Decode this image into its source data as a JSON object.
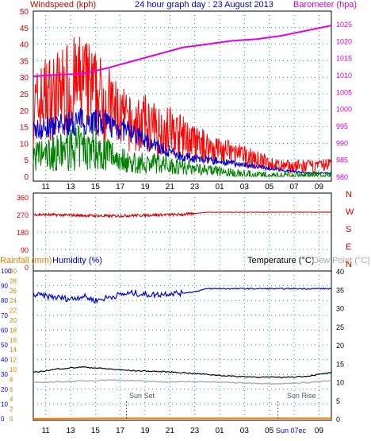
{
  "header": {
    "left": "Windspeed (kph)",
    "center": "24 hour graph day : 23 August 2013",
    "right": "Barometer (hpa)"
  },
  "lower_header": {
    "rainfall": "Rainfall (mm)",
    "humidity": "Humidity (%)",
    "temperature": "Temperature (°C)",
    "dewpoint": "Dew Point (°C)"
  },
  "annotations": {
    "sunset": "Sun Set",
    "sunrise": "Sun Rise",
    "xlabel_overlap": "Sun 07ec"
  },
  "colors": {
    "windspeed": "#ff0000",
    "gust_band": "#0000cc",
    "avg_band": "#008000",
    "barometer": "#e000e0",
    "direction": "#cc0000",
    "humidity": "#0000cc",
    "temperature": "#000000",
    "dewpoint": "#b0b0b0",
    "rainfall": "#ff8000",
    "axis_left": "#cc0000",
    "axis_right": "#cc00cc",
    "axis_lower_left": "#0000cc",
    "axis_lower_right": "#000000"
  },
  "chart_data": [
    {
      "type": "line",
      "title": "24 hour graph day : 23 August 2013",
      "x_ticks": [
        "11",
        "13",
        "15",
        "17",
        "19",
        "21",
        "23",
        "01",
        "03",
        "05",
        "07",
        "09"
      ],
      "left_axis": {
        "label": "Windspeed (kph)",
        "ylim": [
          0,
          50
        ],
        "ticks": [
          0,
          5,
          10,
          15,
          20,
          25,
          30,
          35,
          40,
          45,
          50
        ]
      },
      "right_axis": {
        "label": "Barometer (hpa)",
        "ylim": [
          980,
          1025
        ],
        "ticks": [
          980,
          985,
          990,
          995,
          1000,
          1005,
          1010,
          1015,
          1020,
          1025
        ]
      },
      "series": [
        {
          "name": "Windspeed (kph)",
          "x": [
            0,
            1,
            2,
            3,
            4,
            5,
            6,
            7,
            8,
            9,
            10,
            11,
            12,
            13,
            14,
            15,
            16,
            17,
            18,
            19,
            20,
            21,
            22,
            23,
            24
          ],
          "values": [
            20,
            24,
            25,
            27,
            28,
            25,
            22,
            18,
            15,
            16,
            14,
            14,
            12,
            10,
            9,
            8,
            7,
            6,
            5,
            4,
            3,
            3,
            3,
            3,
            4
          ]
        },
        {
          "name": "Barometer (hpa)",
          "x": [
            0,
            2,
            4,
            6,
            8,
            10,
            12,
            14,
            16,
            18,
            20,
            22,
            24
          ],
          "values": [
            1009.5,
            1010,
            1010.3,
            1012,
            1014,
            1016,
            1018,
            1019,
            1020,
            1020.5,
            1021.5,
            1023,
            1024.5
          ]
        }
      ],
      "bands": [
        {
          "x": [
            0,
            2,
            4,
            6,
            8,
            10,
            12,
            14,
            16,
            18,
            20,
            22,
            24
          ],
          "values": [
            14,
            15,
            17,
            16,
            13,
            9,
            6,
            5,
            4,
            3,
            2,
            1,
            1
          ]
        },
        {
          "x": [
            0,
            2,
            4,
            6,
            8,
            10,
            12,
            14,
            16,
            18,
            20,
            22,
            24
          ],
          "values": [
            6,
            7,
            9,
            7,
            4,
            4,
            3,
            2,
            1,
            0,
            0,
            0,
            0
          ]
        }
      ]
    },
    {
      "type": "scatter",
      "x_ticks": [
        "11",
        "13",
        "15",
        "17",
        "19",
        "21",
        "23",
        "01",
        "03",
        "05",
        "07",
        "09"
      ],
      "left_axis": {
        "ylim": [
          0,
          360
        ],
        "ticks": [
          0,
          90,
          180,
          270,
          360
        ]
      },
      "right_axis": {
        "labels": [
          "N",
          "W",
          "S",
          "E",
          "N"
        ]
      },
      "series": [
        {
          "name": "Wind direction",
          "x": [
            0,
            2,
            4,
            6,
            8,
            10,
            12,
            14,
            16,
            18,
            20,
            22,
            24
          ],
          "values": [
            270,
            268,
            265,
            262,
            265,
            268,
            270,
            282,
            282,
            282,
            282,
            282,
            282
          ]
        }
      ]
    },
    {
      "type": "line",
      "x_ticks": [
        "11",
        "13",
        "15",
        "17",
        "19",
        "21",
        "23",
        "01",
        "03",
        "05",
        "07",
        "09"
      ],
      "left_axis_outer": {
        "label": "Rainfall (mm)",
        "ylim": [
          0,
          30
        ],
        "ticks": [
          0,
          2,
          4,
          6,
          8,
          10,
          12,
          14,
          16,
          18,
          20,
          22,
          24,
          26,
          28,
          30
        ]
      },
      "left_axis": {
        "label": "Humidity (%)",
        "ylim": [
          0,
          100
        ],
        "ticks": [
          0,
          10,
          20,
          30,
          40,
          50,
          60,
          70,
          80,
          90,
          100
        ]
      },
      "right_axis": {
        "label": "Temperature (°C)",
        "ylim": [
          0,
          40
        ],
        "ticks": [
          0,
          5,
          10,
          15,
          20,
          25,
          30,
          35,
          40
        ]
      },
      "series": [
        {
          "name": "Humidity (%)",
          "x": [
            0,
            1,
            2,
            3,
            4,
            5,
            6,
            7,
            8,
            9,
            10,
            11,
            12,
            13,
            14,
            15,
            16,
            17,
            18,
            19,
            20,
            21,
            22,
            23,
            24
          ],
          "values": [
            84,
            83,
            82,
            81,
            83,
            80,
            82,
            84,
            85,
            84,
            84,
            85,
            85,
            86,
            88,
            88,
            88,
            88,
            88,
            88,
            88,
            88,
            88,
            88,
            88
          ]
        },
        {
          "name": "Temperature (°C)",
          "x": [
            0,
            2,
            4,
            6,
            8,
            10,
            12,
            14,
            16,
            18,
            20,
            22,
            24
          ],
          "values": [
            12.5,
            13.5,
            14,
            13.5,
            13,
            12.8,
            12.5,
            12,
            11.5,
            11.3,
            11.2,
            11.5,
            12.5
          ]
        },
        {
          "name": "Dew Point (°C)",
          "x": [
            0,
            2,
            4,
            6,
            8,
            10,
            12,
            14,
            16,
            18,
            20,
            22,
            24
          ],
          "values": [
            9.8,
            10,
            10.2,
            10.5,
            10.3,
            10,
            10,
            10,
            9.8,
            9.6,
            9.5,
            9.8,
            10.3
          ]
        },
        {
          "name": "Rainfall (mm)",
          "x": [
            0,
            6.5,
            24
          ],
          "values": [
            0,
            0.1,
            0.1
          ]
        }
      ],
      "markers": {
        "sunset_x": 7.5,
        "sunrise_x": 19.7
      }
    }
  ]
}
